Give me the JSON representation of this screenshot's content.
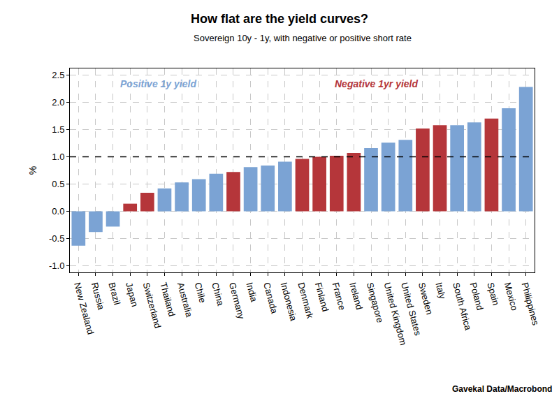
{
  "chart_data": {
    "type": "bar",
    "title": "How flat are the yield curves?",
    "subtitle": "Sovereign 10y - 1y, with negative or positive short rate",
    "y_label": "%",
    "source": "Gavekal Data/Macrobond",
    "categories": [
      "New Zealand",
      "Russia",
      "Brazil",
      "Japan",
      "Switzerland",
      "Thailand",
      "Australia",
      "Chile",
      "China",
      "Germany",
      "India",
      "Canada",
      "Indonesia",
      "Denmark",
      "Finland",
      "France",
      "Ireland",
      "Singapore",
      "United Kingdom",
      "United States",
      "Sweden",
      "Italy",
      "South Africa",
      "Poland",
      "Spain",
      "Mexico",
      "Philippines"
    ],
    "values": [
      -0.63,
      -0.38,
      -0.28,
      0.14,
      0.34,
      0.42,
      0.53,
      0.59,
      0.69,
      0.72,
      0.81,
      0.84,
      0.91,
      0.96,
      1.0,
      1.02,
      1.07,
      1.16,
      1.26,
      1.31,
      1.52,
      1.58,
      1.58,
      1.63,
      1.7,
      1.89,
      2.28
    ],
    "colors": [
      "#7ba3d4",
      "#7ba3d4",
      "#7ba3d4",
      "#b5363a",
      "#b5363a",
      "#7ba3d4",
      "#7ba3d4",
      "#7ba3d4",
      "#7ba3d4",
      "#b5363a",
      "#7ba3d4",
      "#7ba3d4",
      "#7ba3d4",
      "#b5363a",
      "#b5363a",
      "#b5363a",
      "#b5363a",
      "#7ba3d4",
      "#7ba3d4",
      "#7ba3d4",
      "#b5363a",
      "#b5363a",
      "#7ba3d4",
      "#7ba3d4",
      "#b5363a",
      "#7ba3d4",
      "#7ba3d4"
    ],
    "annotations": [
      {
        "text": "Positive 1y yield",
        "color": "#7ba3d4"
      },
      {
        "text": "Negative 1yr yield",
        "color": "#b5363a"
      }
    ],
    "reference_line": {
      "value": 1,
      "line_style": "dashed"
    },
    "ylim": [
      -1.12,
      2.62
    ],
    "yticks": [
      {
        "value": -1,
        "label": "-1.0"
      },
      {
        "value": -0.5,
        "label": "-0.5"
      },
      {
        "value": 0,
        "label": "0.0"
      },
      {
        "value": 0.5,
        "label": "0.5"
      },
      {
        "value": 1,
        "label": "1.0"
      },
      {
        "value": 1.5,
        "label": "1.5"
      },
      {
        "value": 2,
        "label": "2.0"
      },
      {
        "value": 2.5,
        "label": "2.5"
      }
    ],
    "grid": true
  }
}
